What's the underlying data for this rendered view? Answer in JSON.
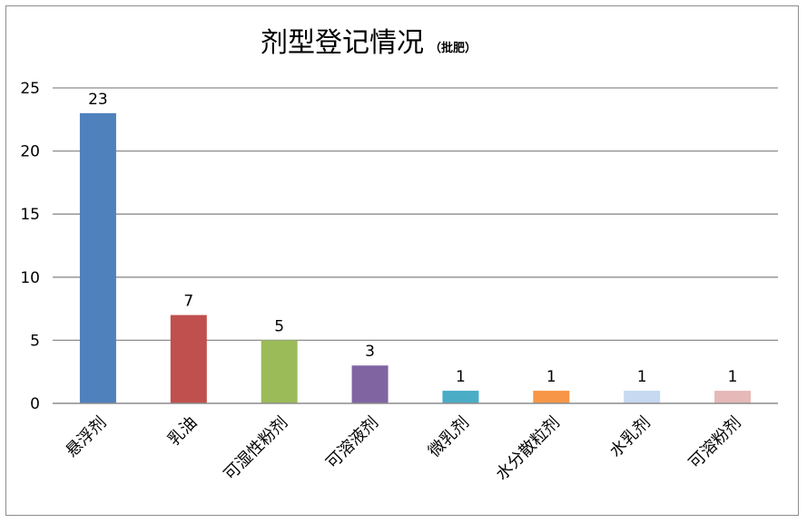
{
  "chart_data": {
    "type": "bar",
    "title": "剂型登记情况",
    "subtitle": "（批肥）",
    "xlabel": "",
    "ylabel": "",
    "ylim": [
      0,
      25
    ],
    "yticks": [
      0,
      5,
      10,
      15,
      20,
      25
    ],
    "grid": true,
    "legend": "none",
    "categories": [
      "悬浮剂",
      "乳油",
      "可湿性粉剂",
      "可溶液剂",
      "微乳剂",
      "水分散粒剂",
      "水乳剂",
      "可溶粉剂"
    ],
    "values": [
      23,
      7,
      5,
      3,
      1,
      1,
      1,
      1
    ],
    "colors": [
      "#4f81bd",
      "#c0504d",
      "#9bbb59",
      "#8064a2",
      "#4bacc6",
      "#f79646",
      "#c6d9f1",
      "#e6b9b8"
    ]
  }
}
